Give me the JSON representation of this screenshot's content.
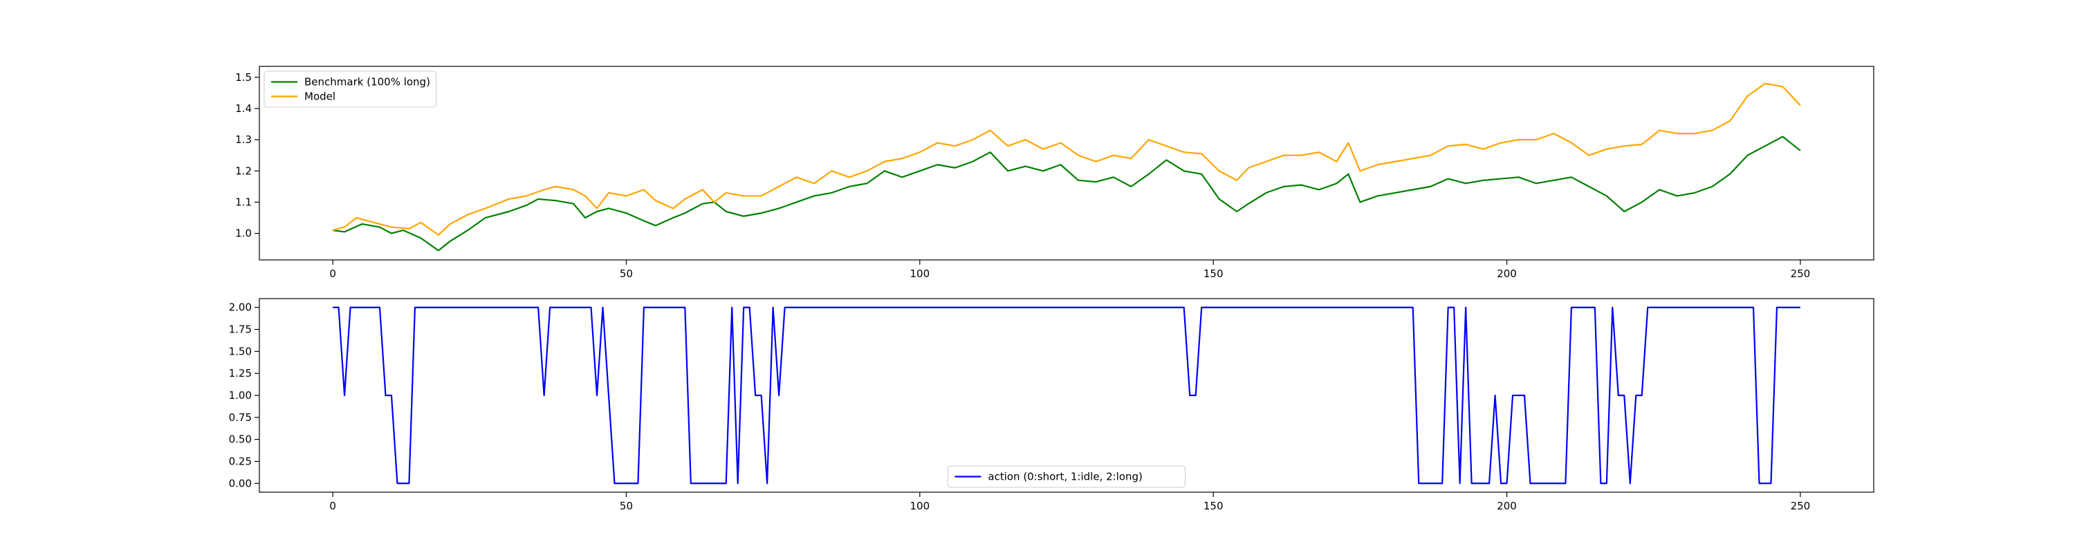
{
  "chart_data": [
    {
      "type": "line",
      "title": "",
      "xlabel": "",
      "ylabel": "",
      "xlim": [
        -12.5,
        262.5
      ],
      "ylim": [
        0.915,
        1.535
      ],
      "xticks": [
        0,
        50,
        100,
        150,
        200,
        250
      ],
      "yticks": [
        1.0,
        1.1,
        1.2,
        1.3,
        1.4,
        1.5
      ],
      "ytick_labels": [
        "1.0",
        "1.1",
        "1.2",
        "1.3",
        "1.4",
        "1.5"
      ],
      "grid": false,
      "legend_position": "upper left",
      "series": [
        {
          "name": "Benchmark (100% long)",
          "color": "#008000",
          "points": [
            [
              0,
              1.01
            ],
            [
              2,
              1.005
            ],
            [
              5,
              1.03
            ],
            [
              8,
              1.02
            ],
            [
              10,
              1.0
            ],
            [
              12,
              1.01
            ],
            [
              15,
              0.985
            ],
            [
              18,
              0.945
            ],
            [
              20,
              0.975
            ],
            [
              23,
              1.01
            ],
            [
              26,
              1.05
            ],
            [
              30,
              1.07
            ],
            [
              33,
              1.09
            ],
            [
              35,
              1.11
            ],
            [
              38,
              1.105
            ],
            [
              41,
              1.095
            ],
            [
              43,
              1.05
            ],
            [
              45,
              1.07
            ],
            [
              47,
              1.08
            ],
            [
              50,
              1.065
            ],
            [
              53,
              1.04
            ],
            [
              55,
              1.025
            ],
            [
              58,
              1.05
            ],
            [
              60,
              1.065
            ],
            [
              63,
              1.095
            ],
            [
              65,
              1.1
            ],
            [
              67,
              1.07
            ],
            [
              70,
              1.055
            ],
            [
              73,
              1.065
            ],
            [
              76,
              1.08
            ],
            [
              79,
              1.1
            ],
            [
              82,
              1.12
            ],
            [
              85,
              1.13
            ],
            [
              88,
              1.15
            ],
            [
              91,
              1.16
            ],
            [
              94,
              1.2
            ],
            [
              97,
              1.18
            ],
            [
              100,
              1.2
            ],
            [
              103,
              1.22
            ],
            [
              106,
              1.21
            ],
            [
              109,
              1.23
            ],
            [
              112,
              1.26
            ],
            [
              115,
              1.2
            ],
            [
              118,
              1.215
            ],
            [
              121,
              1.2
            ],
            [
              124,
              1.22
            ],
            [
              127,
              1.17
            ],
            [
              130,
              1.165
            ],
            [
              133,
              1.18
            ],
            [
              136,
              1.15
            ],
            [
              139,
              1.19
            ],
            [
              142,
              1.235
            ],
            [
              145,
              1.2
            ],
            [
              148,
              1.19
            ],
            [
              151,
              1.11
            ],
            [
              154,
              1.07
            ],
            [
              156,
              1.095
            ],
            [
              159,
              1.13
            ],
            [
              162,
              1.15
            ],
            [
              165,
              1.155
            ],
            [
              168,
              1.14
            ],
            [
              171,
              1.16
            ],
            [
              173,
              1.19
            ],
            [
              175,
              1.1
            ],
            [
              178,
              1.12
            ],
            [
              181,
              1.13
            ],
            [
              184,
              1.14
            ],
            [
              187,
              1.15
            ],
            [
              190,
              1.175
            ],
            [
              193,
              1.16
            ],
            [
              196,
              1.17
            ],
            [
              199,
              1.175
            ],
            [
              202,
              1.18
            ],
            [
              205,
              1.16
            ],
            [
              208,
              1.17
            ],
            [
              211,
              1.18
            ],
            [
              214,
              1.15
            ],
            [
              217,
              1.12
            ],
            [
              220,
              1.07
            ],
            [
              223,
              1.1
            ],
            [
              226,
              1.14
            ],
            [
              229,
              1.12
            ],
            [
              232,
              1.13
            ],
            [
              235,
              1.15
            ],
            [
              238,
              1.19
            ],
            [
              241,
              1.25
            ],
            [
              244,
              1.28
            ],
            [
              247,
              1.31
            ],
            [
              250,
              1.265
            ]
          ]
        },
        {
          "name": "Model",
          "color": "#FFA500",
          "points": [
            [
              0,
              1.01
            ],
            [
              2,
              1.02
            ],
            [
              4,
              1.05
            ],
            [
              7,
              1.035
            ],
            [
              10,
              1.02
            ],
            [
              13,
              1.015
            ],
            [
              15,
              1.035
            ],
            [
              18,
              0.995
            ],
            [
              20,
              1.03
            ],
            [
              23,
              1.06
            ],
            [
              26,
              1.08
            ],
            [
              30,
              1.11
            ],
            [
              33,
              1.12
            ],
            [
              36,
              1.14
            ],
            [
              38,
              1.15
            ],
            [
              41,
              1.14
            ],
            [
              43,
              1.12
            ],
            [
              45,
              1.08
            ],
            [
              47,
              1.13
            ],
            [
              50,
              1.12
            ],
            [
              53,
              1.14
            ],
            [
              55,
              1.105
            ],
            [
              58,
              1.08
            ],
            [
              60,
              1.11
            ],
            [
              63,
              1.14
            ],
            [
              65,
              1.1
            ],
            [
              67,
              1.13
            ],
            [
              70,
              1.12
            ],
            [
              73,
              1.12
            ],
            [
              76,
              1.15
            ],
            [
              79,
              1.18
            ],
            [
              82,
              1.16
            ],
            [
              85,
              1.2
            ],
            [
              88,
              1.18
            ],
            [
              91,
              1.2
            ],
            [
              94,
              1.23
            ],
            [
              97,
              1.24
            ],
            [
              100,
              1.26
            ],
            [
              103,
              1.29
            ],
            [
              106,
              1.28
            ],
            [
              109,
              1.3
            ],
            [
              112,
              1.33
            ],
            [
              115,
              1.28
            ],
            [
              118,
              1.3
            ],
            [
              121,
              1.27
            ],
            [
              124,
              1.29
            ],
            [
              127,
              1.25
            ],
            [
              130,
              1.23
            ],
            [
              133,
              1.25
            ],
            [
              136,
              1.24
            ],
            [
              139,
              1.3
            ],
            [
              142,
              1.28
            ],
            [
              145,
              1.26
            ],
            [
              148,
              1.255
            ],
            [
              151,
              1.2
            ],
            [
              154,
              1.17
            ],
            [
              156,
              1.21
            ],
            [
              159,
              1.23
            ],
            [
              162,
              1.25
            ],
            [
              165,
              1.25
            ],
            [
              168,
              1.26
            ],
            [
              171,
              1.23
            ],
            [
              173,
              1.29
            ],
            [
              175,
              1.2
            ],
            [
              178,
              1.22
            ],
            [
              181,
              1.23
            ],
            [
              184,
              1.24
            ],
            [
              187,
              1.25
            ],
            [
              190,
              1.28
            ],
            [
              193,
              1.285
            ],
            [
              196,
              1.27
            ],
            [
              199,
              1.29
            ],
            [
              202,
              1.3
            ],
            [
              205,
              1.3
            ],
            [
              208,
              1.32
            ],
            [
              211,
              1.29
            ],
            [
              214,
              1.25
            ],
            [
              217,
              1.27
            ],
            [
              220,
              1.28
            ],
            [
              223,
              1.285
            ],
            [
              226,
              1.33
            ],
            [
              229,
              1.32
            ],
            [
              232,
              1.32
            ],
            [
              235,
              1.33
            ],
            [
              238,
              1.36
            ],
            [
              241,
              1.44
            ],
            [
              244,
              1.48
            ],
            [
              247,
              1.47
            ],
            [
              250,
              1.41
            ]
          ]
        }
      ]
    },
    {
      "type": "line",
      "title": "",
      "xlabel": "",
      "ylabel": "",
      "xlim": [
        -12.5,
        262.5
      ],
      "ylim": [
        -0.1,
        2.1
      ],
      "xticks": [
        0,
        50,
        100,
        150,
        200,
        250
      ],
      "yticks": [
        0,
        0.25,
        0.5,
        0.75,
        1.0,
        1.25,
        1.5,
        1.75,
        2.0
      ],
      "ytick_labels": [
        "0.00",
        "0.25",
        "0.50",
        "0.75",
        "1.00",
        "1.25",
        "1.50",
        "1.75",
        "2.00"
      ],
      "grid": false,
      "legend_position": "lower center",
      "series": [
        {
          "name": "action (0:short, 1:idle, 2:long)",
          "color": "#0000FF",
          "points": [
            [
              0,
              2
            ],
            [
              1,
              2
            ],
            [
              2,
              1
            ],
            [
              3,
              2
            ],
            [
              8,
              2
            ],
            [
              9,
              1
            ],
            [
              10,
              1
            ],
            [
              11,
              0
            ],
            [
              13,
              0
            ],
            [
              14,
              2
            ],
            [
              35,
              2
            ],
            [
              36,
              1
            ],
            [
              37,
              2
            ],
            [
              44,
              2
            ],
            [
              45,
              1
            ],
            [
              46,
              2
            ],
            [
              48,
              0
            ],
            [
              52,
              0
            ],
            [
              53,
              2
            ],
            [
              60,
              2
            ],
            [
              61,
              0
            ],
            [
              67,
              0
            ],
            [
              68,
              2
            ],
            [
              69,
              0
            ],
            [
              70,
              2
            ],
            [
              71,
              2
            ],
            [
              72,
              1
            ],
            [
              73,
              1
            ],
            [
              74,
              0
            ],
            [
              75,
              2
            ],
            [
              76,
              1
            ],
            [
              77,
              2
            ],
            [
              145,
              2
            ],
            [
              146,
              1
            ],
            [
              147,
              1
            ],
            [
              148,
              2
            ],
            [
              184,
              2
            ],
            [
              185,
              0
            ],
            [
              189,
              0
            ],
            [
              190,
              2
            ],
            [
              191,
              2
            ],
            [
              192,
              0
            ],
            [
              193,
              2
            ],
            [
              194,
              0
            ],
            [
              197,
              0
            ],
            [
              198,
              1
            ],
            [
              199,
              0
            ],
            [
              200,
              0
            ],
            [
              201,
              1
            ],
            [
              203,
              1
            ],
            [
              204,
              0
            ],
            [
              210,
              0
            ],
            [
              211,
              2
            ],
            [
              215,
              2
            ],
            [
              216,
              0
            ],
            [
              217,
              0
            ],
            [
              218,
              2
            ],
            [
              219,
              1
            ],
            [
              220,
              1
            ],
            [
              221,
              0
            ],
            [
              222,
              1
            ],
            [
              223,
              1
            ],
            [
              224,
              2
            ],
            [
              242,
              2
            ],
            [
              243,
              0
            ],
            [
              245,
              0
            ],
            [
              246,
              2
            ],
            [
              250,
              2
            ]
          ]
        }
      ]
    }
  ]
}
